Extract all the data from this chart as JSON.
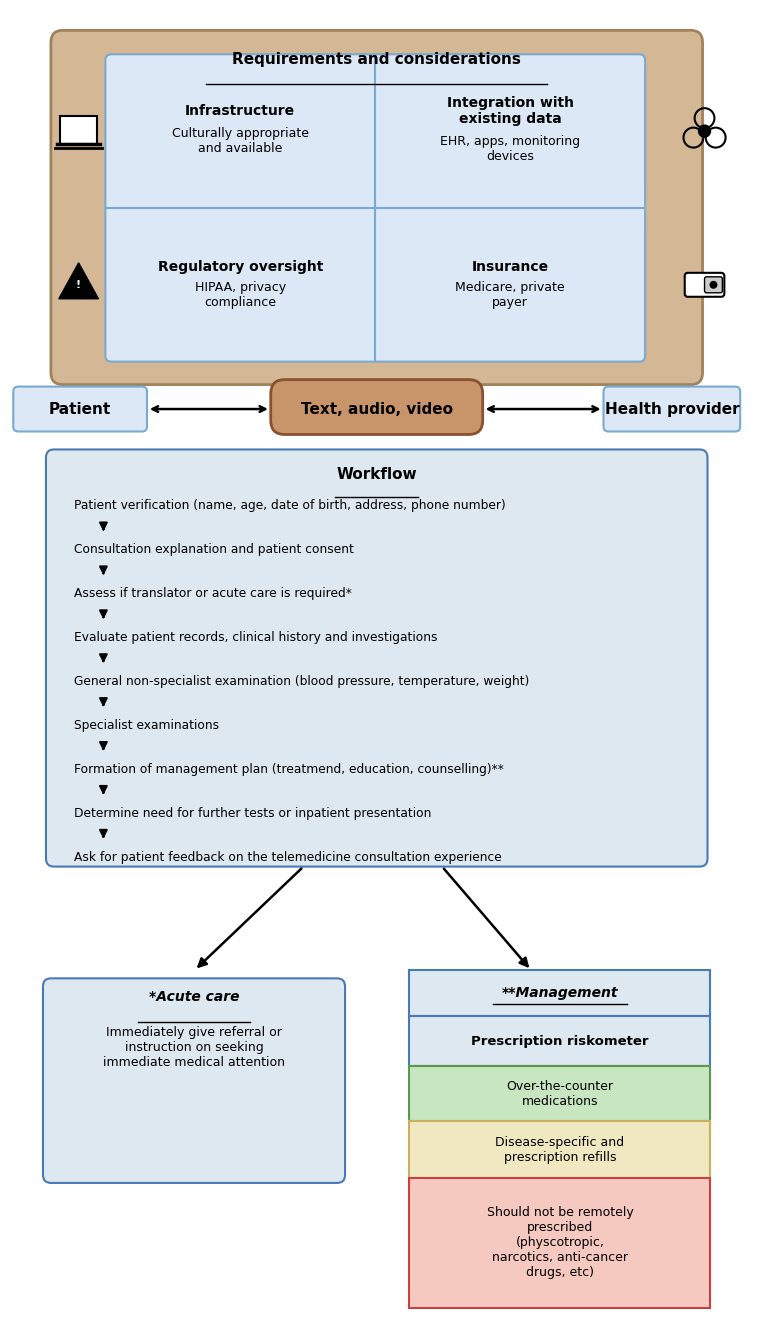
{
  "bg_color": "#ffffff",
  "tan_box": {
    "color": "#d4b896",
    "border": "#a0835a"
  },
  "blue_box": {
    "color": "#dde8f0",
    "border": "#4a7ab5"
  },
  "inner_blue": {
    "color": "#dce8f5",
    "border": "#7aaad0"
  },
  "text_color": "#000000",
  "green_box": {
    "color": "#c8e6c0",
    "border": "#5a9a50"
  },
  "yellow_box": {
    "color": "#f0e8c0",
    "border": "#c8b060"
  },
  "red_box": {
    "color": "#f5c8c0",
    "border": "#c84040"
  },
  "tan_center": {
    "color": "#c8956a",
    "border": "#8a5030"
  },
  "workflow_steps": [
    "Patient verification (name, age, date of birth, address, phone number)",
    "Consultation explanation and patient consent",
    "Assess if translator or acute care is required*",
    "Evaluate patient records, clinical history and investigations",
    "General non-specialist examination (blood pressure, temperature, weight)",
    "Specialist examinations",
    "Formation of management plan (treatmend, education, counselling)**",
    "Determine need for further tests or inpatient presentation",
    "Ask for patient feedback on the telemedicine consultation experience"
  ]
}
